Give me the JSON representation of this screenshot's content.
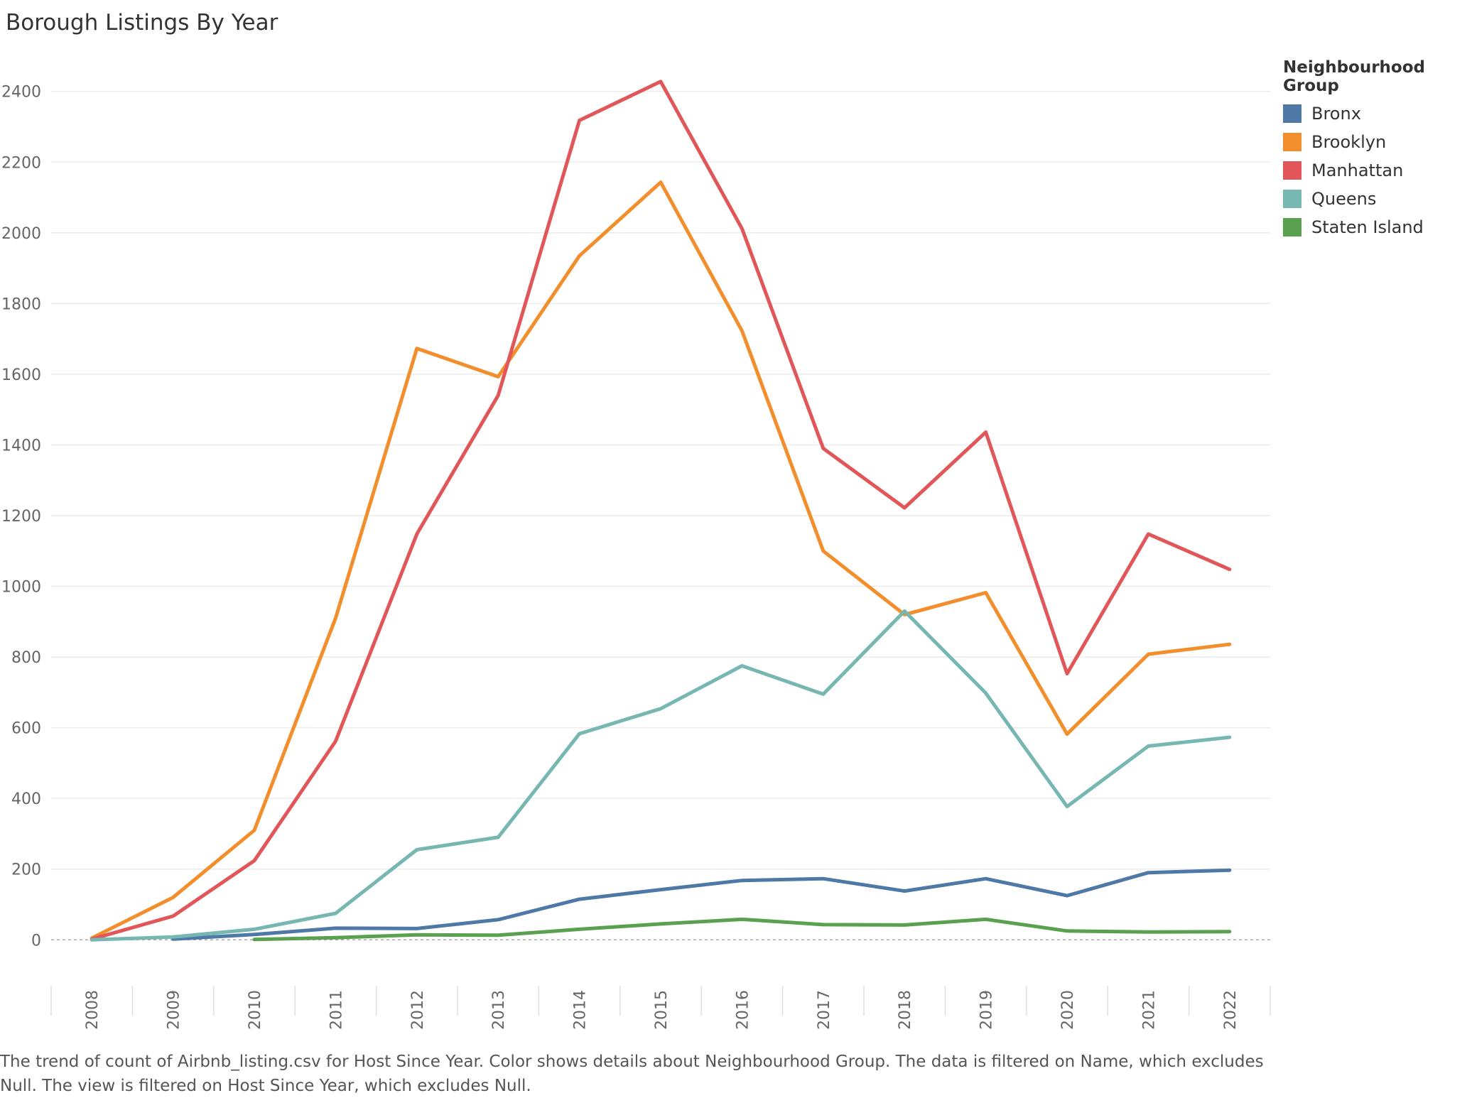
{
  "chart_data": {
    "type": "line",
    "title": "Borough Listings By Year",
    "xlabel": "",
    "ylabel": "",
    "ylim": [
      -130,
      2530
    ],
    "y_ticks": [
      0,
      200,
      400,
      600,
      800,
      1000,
      1200,
      1400,
      1600,
      1800,
      2000,
      2200,
      2400
    ],
    "x": [
      "2008",
      "2009",
      "2010",
      "2011",
      "2012",
      "2013",
      "2014",
      "2015",
      "2016",
      "2017",
      "2018",
      "2019",
      "2020",
      "2021",
      "2022"
    ],
    "grid": true,
    "legend": {
      "title": "Neighbourhood Group",
      "position": "right"
    },
    "series": [
      {
        "name": "Bronx",
        "color": "#4e79a7",
        "values": [
          null,
          2,
          15,
          33,
          32,
          57,
          115,
          142,
          168,
          173,
          138,
          173,
          125,
          190,
          197
        ]
      },
      {
        "name": "Brooklyn",
        "color": "#f28e2b",
        "values": [
          5,
          120,
          310,
          910,
          1673,
          1593,
          1935,
          2143,
          1723,
          1100,
          920,
          982,
          582,
          808,
          836
        ]
      },
      {
        "name": "Manhattan",
        "color": "#e15759",
        "values": [
          2,
          67,
          224,
          562,
          1148,
          1540,
          2318,
          2428,
          2012,
          1390,
          1222,
          1436,
          753,
          1148,
          1048
        ]
      },
      {
        "name": "Queens",
        "color": "#76b7b2",
        "values": [
          0,
          8,
          30,
          75,
          255,
          290,
          583,
          654,
          775,
          695,
          930,
          698,
          377,
          548,
          573
        ]
      },
      {
        "name": "Staten Island",
        "color": "#59a14f",
        "values": [
          null,
          null,
          1,
          6,
          14,
          13,
          30,
          45,
          58,
          43,
          42,
          58,
          25,
          22,
          23
        ]
      }
    ]
  },
  "caption": "The trend of count of Airbnb_listing.csv for Host Since Year.  Color shows details about Neighbourhood Group. The data is filtered on Name, which excludes Null. The view is filtered on Host Since Year, which excludes Null."
}
